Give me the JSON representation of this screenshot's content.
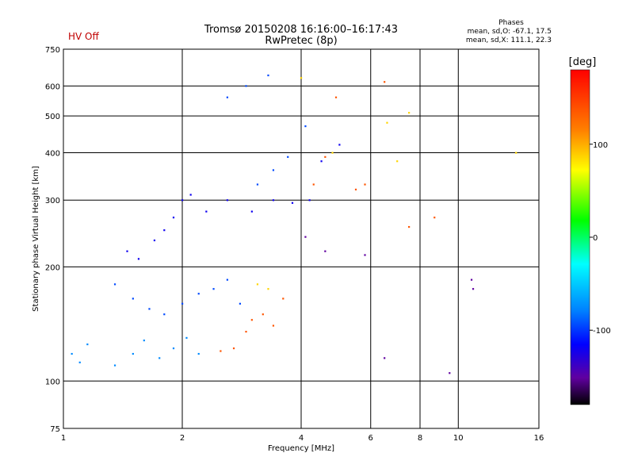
{
  "chart_data": {
    "type": "scatter",
    "status": "HV Off",
    "title_line1": "Tromsø 20150208 16:16:00–16:17:43",
    "title_line2": "RwPretec (8p)",
    "phase_header": "Phases",
    "phase_line1": "mean, sd,O: -67.1, 17.5",
    "phase_line2": "mean, sd,X: 111.1, 22.3",
    "xlabel": "Frequency [MHz]",
    "ylabel": "Stationary phase Virtual Height [km]",
    "x_scale": "log2",
    "y_scale": "log",
    "xlim": [
      1,
      16
    ],
    "ylim": [
      75,
      750
    ],
    "x_ticks": [
      "1",
      "2",
      "4",
      "6",
      "8",
      "10",
      "16"
    ],
    "y_ticks": [
      "75",
      "100",
      "200",
      "300",
      "400",
      "500",
      "600",
      "750"
    ],
    "x_grid": [
      2,
      4,
      6,
      8,
      10
    ],
    "y_grid": [
      100,
      200,
      300,
      400,
      500,
      600
    ],
    "colorbar": {
      "label": "[deg]",
      "range": [
        -180,
        180
      ],
      "ticks": [
        "100",
        "0",
        "-100"
      ],
      "tick_values": [
        100,
        0,
        -100
      ]
    },
    "series": [
      {
        "phase": -75,
        "points": [
          [
            1.05,
            118
          ],
          [
            1.1,
            112
          ],
          [
            1.15,
            125
          ],
          [
            1.35,
            110
          ],
          [
            1.5,
            118
          ],
          [
            1.6,
            128
          ],
          [
            1.75,
            115
          ],
          [
            1.9,
            122
          ],
          [
            2.05,
            130
          ],
          [
            2.2,
            118
          ]
        ]
      },
      {
        "phase": -120,
        "points": [
          [
            1.45,
            220
          ],
          [
            1.55,
            210
          ],
          [
            1.7,
            235
          ],
          [
            1.8,
            250
          ],
          [
            1.9,
            270
          ],
          [
            2.0,
            300
          ],
          [
            2.1,
            310
          ],
          [
            2.3,
            280
          ],
          [
            2.6,
            300
          ],
          [
            3.0,
            280
          ],
          [
            3.4,
            300
          ],
          [
            3.8,
            295
          ],
          [
            4.2,
            300
          ],
          [
            4.5,
            380
          ],
          [
            5.0,
            420
          ]
        ]
      },
      {
        "phase": -95,
        "points": [
          [
            1.35,
            180
          ],
          [
            1.5,
            165
          ],
          [
            1.65,
            155
          ],
          [
            1.8,
            150
          ],
          [
            2.0,
            160
          ],
          [
            2.2,
            170
          ],
          [
            2.4,
            175
          ],
          [
            2.6,
            185
          ],
          [
            2.8,
            160
          ],
          [
            3.1,
            330
          ],
          [
            3.4,
            360
          ],
          [
            3.7,
            390
          ],
          [
            4.1,
            470
          ],
          [
            2.6,
            560
          ],
          [
            2.9,
            600
          ],
          [
            3.3,
            640
          ]
        ]
      },
      {
        "phase": 140,
        "points": [
          [
            2.5,
            120
          ],
          [
            2.7,
            122
          ],
          [
            2.9,
            135
          ],
          [
            3.0,
            145
          ],
          [
            3.2,
            150
          ],
          [
            3.4,
            140
          ],
          [
            3.6,
            165
          ],
          [
            4.3,
            330
          ],
          [
            4.6,
            390
          ],
          [
            4.9,
            560
          ],
          [
            5.5,
            320
          ],
          [
            5.8,
            330
          ],
          [
            6.5,
            615
          ],
          [
            7.5,
            255
          ],
          [
            8.7,
            270
          ]
        ]
      },
      {
        "phase": 100,
        "points": [
          [
            3.1,
            180
          ],
          [
            3.3,
            175
          ],
          [
            4.0,
            630
          ],
          [
            4.8,
            400
          ],
          [
            6.6,
            480
          ],
          [
            7.0,
            380
          ],
          [
            7.5,
            510
          ],
          [
            14.0,
            400
          ]
        ]
      },
      {
        "phase": -150,
        "points": [
          [
            4.1,
            240
          ],
          [
            4.6,
            220
          ],
          [
            5.8,
            215
          ],
          [
            6.5,
            115
          ],
          [
            9.5,
            105
          ],
          [
            10.8,
            185
          ],
          [
            10.9,
            175
          ]
        ]
      }
    ]
  }
}
